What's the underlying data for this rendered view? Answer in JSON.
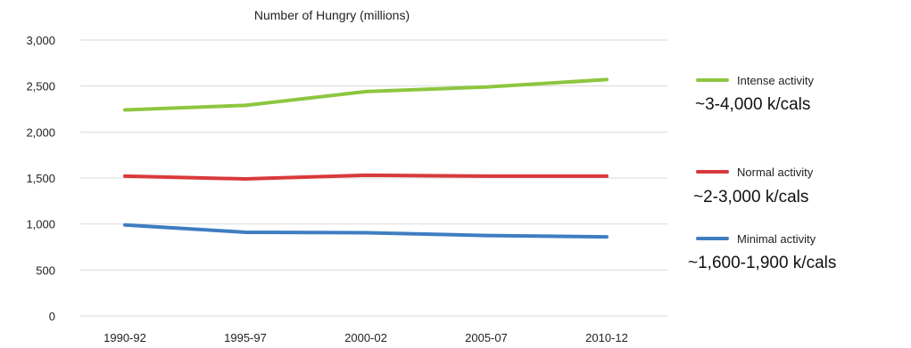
{
  "chart_data": {
    "type": "line",
    "title": "Number of Hungry (millions)",
    "categories": [
      "1990-92",
      "1995-97",
      "2000-02",
      "2005-07",
      "2010-12"
    ],
    "ylim": [
      0,
      3000
    ],
    "yticks": [
      "0",
      "500",
      "1,000",
      "1,500",
      "2,000",
      "2,500",
      "3,000"
    ],
    "grid": true,
    "legend_position": "right",
    "series": [
      {
        "name": "Intense activity",
        "color": "#8dc63f",
        "values": [
          2240,
          2290,
          2440,
          2490,
          2570
        ],
        "annotation": "~3-4,000 k/cals"
      },
      {
        "name": "Normal activity",
        "color": "#d9393a",
        "values": [
          1520,
          1490,
          1530,
          1520,
          1520
        ],
        "annotation": "~2-3,000 k/cals"
      },
      {
        "name": "Minimal activity",
        "color": "#3f7dc1",
        "values": [
          990,
          910,
          905,
          875,
          860
        ],
        "annotation": "~1,600-1,900 k/cals"
      }
    ]
  }
}
